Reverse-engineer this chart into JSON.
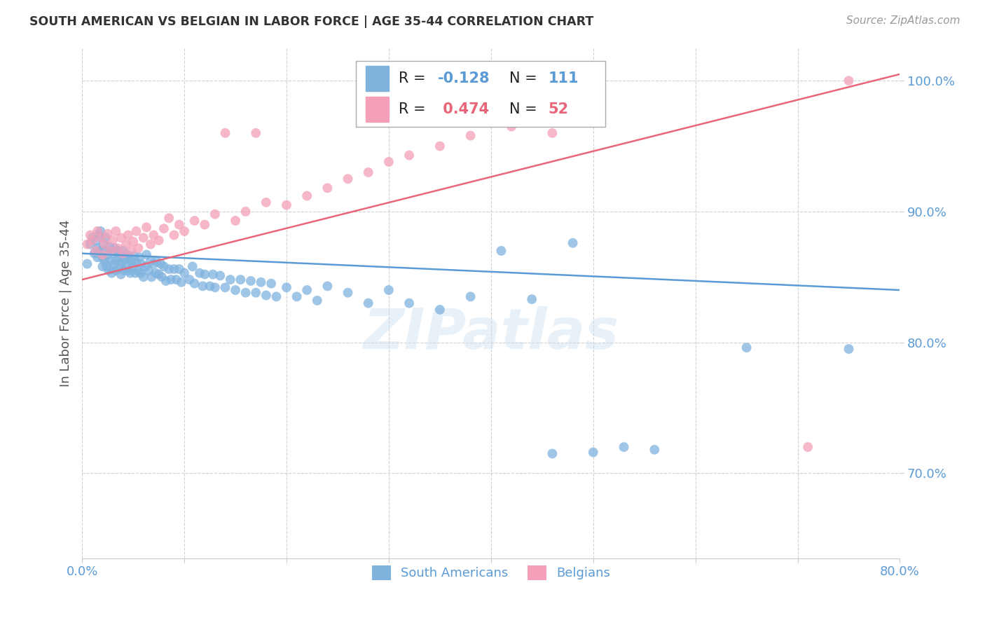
{
  "title": "SOUTH AMERICAN VS BELGIAN IN LABOR FORCE | AGE 35-44 CORRELATION CHART",
  "source": "Source: ZipAtlas.com",
  "ylabel": "In Labor Force | Age 35-44",
  "x_min": 0.0,
  "x_max": 0.8,
  "y_min": 0.635,
  "y_max": 1.025,
  "y_ticks": [
    0.7,
    0.8,
    0.9,
    1.0
  ],
  "y_tick_labels": [
    "70.0%",
    "80.0%",
    "90.0%",
    "100.0%"
  ],
  "blue_color": "#7fb3de",
  "pink_color": "#f4a0b8",
  "blue_line_color": "#5b9bd5",
  "pink_line_color": "#e8657a",
  "R_blue": -0.128,
  "N_blue": 111,
  "R_pink": 0.474,
  "N_pink": 52,
  "legend_label_blue": "South Americans",
  "legend_label_pink": "Belgians",
  "watermark": "ZIPatlas",
  "background_color": "#ffffff",
  "grid_color": "#cccccc",
  "title_color": "#333333",
  "axis_color": "#5b9bd5",
  "blue_trend_x0": 0.0,
  "blue_trend_y0": 0.868,
  "blue_trend_x1": 0.8,
  "blue_trend_y1": 0.84,
  "pink_trend_x0": 0.0,
  "pink_trend_y0": 0.848,
  "pink_trend_x1": 0.8,
  "pink_trend_y1": 1.005,
  "south_american_x": [
    0.005,
    0.008,
    0.01,
    0.012,
    0.014,
    0.015,
    0.015,
    0.016,
    0.017,
    0.018,
    0.02,
    0.02,
    0.021,
    0.022,
    0.022,
    0.023,
    0.024,
    0.025,
    0.026,
    0.027,
    0.028,
    0.029,
    0.03,
    0.031,
    0.032,
    0.033,
    0.034,
    0.035,
    0.036,
    0.037,
    0.038,
    0.039,
    0.04,
    0.041,
    0.042,
    0.043,
    0.044,
    0.045,
    0.046,
    0.047,
    0.048,
    0.05,
    0.051,
    0.052,
    0.053,
    0.055,
    0.056,
    0.057,
    0.058,
    0.06,
    0.062,
    0.063,
    0.065,
    0.067,
    0.068,
    0.07,
    0.072,
    0.073,
    0.075,
    0.077,
    0.078,
    0.08,
    0.082,
    0.085,
    0.087,
    0.09,
    0.092,
    0.095,
    0.097,
    0.1,
    0.105,
    0.108,
    0.11,
    0.115,
    0.118,
    0.12,
    0.125,
    0.128,
    0.13,
    0.135,
    0.14,
    0.145,
    0.15,
    0.155,
    0.16,
    0.165,
    0.17,
    0.175,
    0.18,
    0.185,
    0.19,
    0.2,
    0.21,
    0.22,
    0.23,
    0.24,
    0.26,
    0.28,
    0.3,
    0.32,
    0.35,
    0.38,
    0.41,
    0.44,
    0.46,
    0.48,
    0.5,
    0.53,
    0.56,
    0.65,
    0.75
  ],
  "south_american_y": [
    0.86,
    0.875,
    0.88,
    0.868,
    0.878,
    0.865,
    0.872,
    0.882,
    0.87,
    0.885,
    0.858,
    0.865,
    0.875,
    0.862,
    0.87,
    0.88,
    0.858,
    0.867,
    0.855,
    0.873,
    0.862,
    0.853,
    0.868,
    0.86,
    0.872,
    0.855,
    0.863,
    0.87,
    0.857,
    0.865,
    0.852,
    0.861,
    0.87,
    0.855,
    0.863,
    0.858,
    0.867,
    0.855,
    0.864,
    0.853,
    0.862,
    0.858,
    0.866,
    0.853,
    0.861,
    0.855,
    0.865,
    0.853,
    0.86,
    0.85,
    0.858,
    0.867,
    0.855,
    0.862,
    0.85,
    0.86,
    0.853,
    0.862,
    0.852,
    0.86,
    0.85,
    0.858,
    0.847,
    0.856,
    0.848,
    0.856,
    0.848,
    0.856,
    0.846,
    0.853,
    0.848,
    0.858,
    0.845,
    0.853,
    0.843,
    0.852,
    0.843,
    0.852,
    0.842,
    0.851,
    0.842,
    0.848,
    0.84,
    0.848,
    0.838,
    0.847,
    0.838,
    0.846,
    0.836,
    0.845,
    0.835,
    0.842,
    0.835,
    0.84,
    0.832,
    0.843,
    0.838,
    0.83,
    0.84,
    0.83,
    0.825,
    0.835,
    0.87,
    0.833,
    0.715,
    0.876,
    0.716,
    0.72,
    0.718,
    0.796,
    0.795
  ],
  "belgian_x": [
    0.005,
    0.008,
    0.01,
    0.013,
    0.015,
    0.018,
    0.02,
    0.022,
    0.025,
    0.028,
    0.03,
    0.033,
    0.035,
    0.038,
    0.04,
    0.043,
    0.045,
    0.048,
    0.05,
    0.053,
    0.055,
    0.06,
    0.063,
    0.067,
    0.07,
    0.075,
    0.08,
    0.085,
    0.09,
    0.095,
    0.1,
    0.11,
    0.12,
    0.13,
    0.14,
    0.15,
    0.16,
    0.17,
    0.18,
    0.2,
    0.22,
    0.24,
    0.26,
    0.28,
    0.3,
    0.32,
    0.35,
    0.38,
    0.42,
    0.46,
    0.71,
    0.75
  ],
  "belgian_y": [
    0.875,
    0.882,
    0.878,
    0.87,
    0.885,
    0.88,
    0.867,
    0.875,
    0.883,
    0.87,
    0.878,
    0.885,
    0.872,
    0.88,
    0.868,
    0.875,
    0.882,
    0.87,
    0.877,
    0.885,
    0.872,
    0.88,
    0.888,
    0.875,
    0.882,
    0.878,
    0.887,
    0.895,
    0.882,
    0.89,
    0.885,
    0.893,
    0.89,
    0.898,
    0.96,
    0.893,
    0.9,
    0.96,
    0.907,
    0.905,
    0.912,
    0.918,
    0.925,
    0.93,
    0.938,
    0.943,
    0.95,
    0.958,
    0.965,
    0.96,
    0.72,
    1.0
  ]
}
